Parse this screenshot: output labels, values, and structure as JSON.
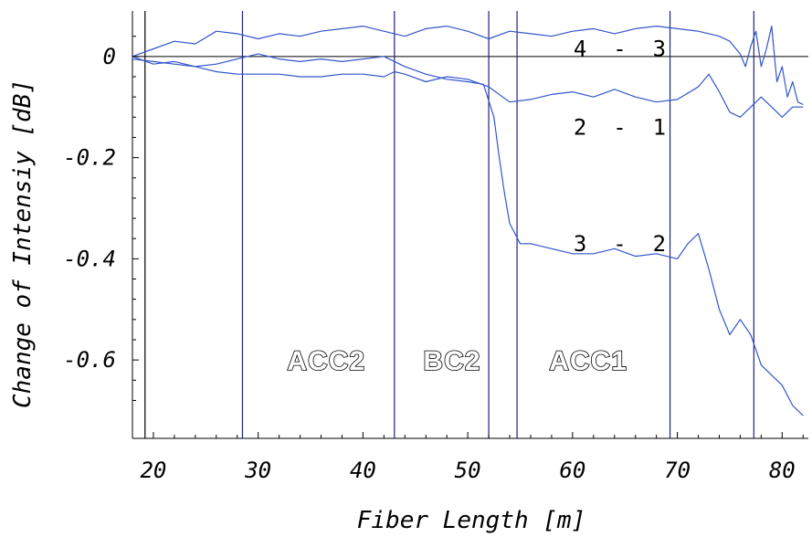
{
  "chart_data": {
    "type": "line",
    "title": "",
    "xlabel": "Fiber Length [m]",
    "ylabel": "Change of Intensiy [dB]",
    "xlim": [
      18,
      82.5
    ],
    "ylim": [
      -0.755,
      0.09
    ],
    "xticks": [
      20,
      30,
      40,
      50,
      60,
      70,
      80
    ],
    "yticks": [
      0,
      -0.2,
      -0.4,
      -0.6
    ],
    "ytick_labels": [
      "0",
      "-0.2",
      "-0.4",
      "-0.6"
    ],
    "grid": false,
    "line_color": "#3355cc",
    "vline_color": "#202080",
    "vertical_lines": [
      19.2,
      28.5,
      43,
      52,
      54.7,
      69.3,
      77.3
    ],
    "region_labels": [
      {
        "text": "ACC2",
        "x": 36.5,
        "y": -0.6
      },
      {
        "text": "BC2",
        "x": 48.5,
        "y": -0.6
      },
      {
        "text": "ACC1",
        "x": 61.5,
        "y": -0.6
      }
    ],
    "series": [
      {
        "name": "4 - 3",
        "label_pos": [
          64.5,
          0.015
        ],
        "x": [
          18,
          20,
          22,
          24,
          26,
          28,
          30,
          32,
          34,
          36,
          38,
          40,
          42,
          44,
          46,
          48,
          50,
          52,
          54,
          56,
          58,
          60,
          62,
          64,
          66,
          68,
          70,
          72,
          74,
          75,
          76,
          76.5,
          77,
          77.5,
          78,
          78.5,
          79,
          79.5,
          80,
          80.5,
          81,
          81.5,
          82
        ],
        "y": [
          0.0,
          0.015,
          0.03,
          0.025,
          0.05,
          0.045,
          0.035,
          0.045,
          0.04,
          0.05,
          0.055,
          0.06,
          0.05,
          0.04,
          0.055,
          0.06,
          0.05,
          0.035,
          0.05,
          0.045,
          0.04,
          0.05,
          0.055,
          0.045,
          0.055,
          0.06,
          0.055,
          0.05,
          0.04,
          0.03,
          0.005,
          -0.02,
          0.02,
          0.05,
          -0.02,
          0.015,
          0.06,
          -0.05,
          -0.02,
          -0.08,
          -0.05,
          -0.09,
          -0.095
        ]
      },
      {
        "name": "2 - 1",
        "label_pos": [
          64.5,
          -0.14
        ],
        "x": [
          18,
          20,
          22,
          24,
          26,
          28,
          30,
          32,
          34,
          36,
          38,
          40,
          42,
          43,
          44,
          46,
          48,
          50,
          52,
          54,
          56,
          58,
          60,
          62,
          64,
          66,
          68,
          70,
          72,
          73,
          74,
          75,
          76,
          77,
          78,
          79,
          80,
          81,
          82
        ],
        "y": [
          0.0,
          -0.015,
          -0.01,
          -0.02,
          -0.03,
          -0.035,
          -0.035,
          -0.035,
          -0.04,
          -0.04,
          -0.035,
          -0.035,
          -0.04,
          -0.03,
          -0.035,
          -0.05,
          -0.04,
          -0.045,
          -0.06,
          -0.09,
          -0.085,
          -0.075,
          -0.07,
          -0.08,
          -0.065,
          -0.08,
          -0.09,
          -0.085,
          -0.06,
          -0.035,
          -0.07,
          -0.11,
          -0.12,
          -0.1,
          -0.08,
          -0.1,
          -0.12,
          -0.1,
          -0.1
        ]
      },
      {
        "name": "3 - 2",
        "label_pos": [
          64.5,
          -0.37
        ],
        "x": [
          18,
          20,
          22,
          24,
          26,
          28,
          30,
          32,
          34,
          36,
          38,
          40,
          42,
          44,
          46,
          48,
          50,
          51.5,
          52.5,
          53,
          53.5,
          54,
          55,
          56,
          58,
          60,
          62,
          64,
          66,
          68,
          70,
          71,
          72,
          73,
          74,
          75,
          76,
          77,
          78,
          79,
          80,
          81,
          82
        ],
        "y": [
          -0.005,
          -0.01,
          -0.015,
          -0.02,
          -0.015,
          -0.005,
          0.005,
          -0.005,
          -0.01,
          -0.005,
          -0.01,
          -0.005,
          0.0,
          -0.02,
          -0.035,
          -0.045,
          -0.05,
          -0.055,
          -0.12,
          -0.2,
          -0.27,
          -0.33,
          -0.37,
          -0.37,
          -0.38,
          -0.39,
          -0.39,
          -0.38,
          -0.395,
          -0.39,
          -0.4,
          -0.37,
          -0.35,
          -0.42,
          -0.5,
          -0.55,
          -0.52,
          -0.55,
          -0.61,
          -0.63,
          -0.65,
          -0.69,
          -0.71
        ]
      }
    ]
  }
}
